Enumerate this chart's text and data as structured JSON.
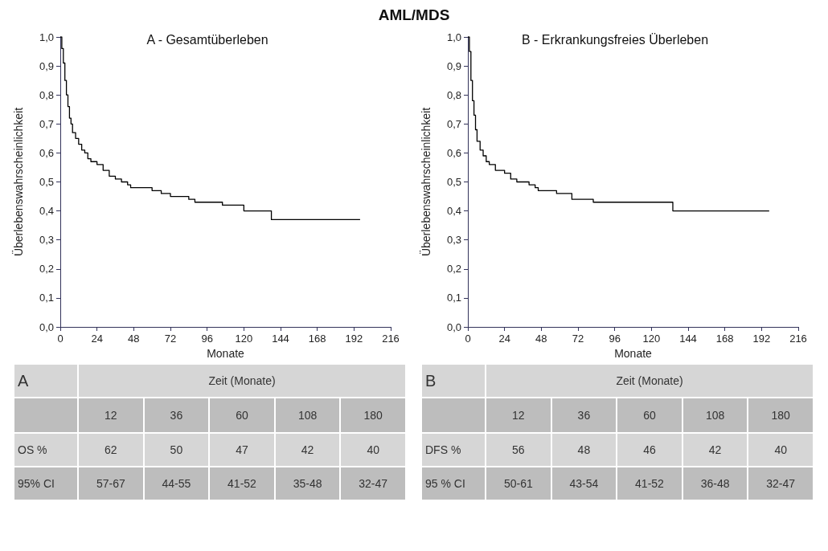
{
  "chart_data": [
    {
      "type": "step",
      "title": "AML/MDS",
      "subtitle": "A - Gesamtüberleben",
      "xlabel": "Monate",
      "ylabel": "Überlebenswahrscheinlichkeit",
      "line_style": "solid",
      "marker": "none",
      "grid": false,
      "xlim": [
        0,
        216
      ],
      "xticks": [
        0,
        24,
        48,
        72,
        96,
        120,
        144,
        168,
        192,
        216
      ],
      "ylim": [
        0,
        1
      ],
      "yticks": [
        {
          "value": 0,
          "label": "0,0"
        },
        {
          "value": 0.1,
          "label": "0,1"
        },
        {
          "value": 0.2,
          "label": "0,2"
        },
        {
          "value": 0.3,
          "label": "0,3"
        },
        {
          "value": 0.4,
          "label": "0,4"
        },
        {
          "value": 0.5,
          "label": "0,5"
        },
        {
          "value": 0.6,
          "label": "0,6"
        },
        {
          "value": 0.7,
          "label": "0,7"
        },
        {
          "value": 0.8,
          "label": "0,8"
        },
        {
          "value": 0.9,
          "label": "0,9"
        },
        {
          "value": 1,
          "label": "1,0"
        }
      ],
      "series": [
        {
          "color": "#000000",
          "x": [
            0,
            1,
            2,
            3,
            4,
            5,
            6,
            7,
            8,
            10,
            12,
            14,
            16,
            18,
            20,
            24,
            28,
            32,
            36,
            40,
            44,
            46,
            60,
            66,
            72,
            84,
            88,
            106,
            120,
            138,
            196
          ],
          "values": [
            1,
            0.96,
            0.91,
            0.85,
            0.8,
            0.76,
            0.72,
            0.7,
            0.67,
            0.65,
            0.63,
            0.61,
            0.6,
            0.58,
            0.57,
            0.56,
            0.54,
            0.52,
            0.51,
            0.5,
            0.49,
            0.48,
            0.47,
            0.46,
            0.45,
            0.44,
            0.43,
            0.42,
            0.4,
            0.37,
            0.37
          ]
        }
      ],
      "annotations": [
        "A",
        "Zeit (Monate)",
        "12",
        "36",
        "60",
        "108",
        "180",
        "OS %",
        "62",
        "50",
        "47",
        "42",
        "40",
        "95% CI",
        "57-67",
        "44-55",
        "41-52",
        "35-48",
        "32-47"
      ]
    },
    {
      "type": "step",
      "title": "B - Erkrankungsfreies Überleben",
      "xlabel": "Monate",
      "ylabel": "Überlebenswahrscheinlichkeit",
      "line_style": "solid",
      "marker": "none",
      "grid": false,
      "xlim": [
        0,
        216
      ],
      "xticks": [
        0,
        24,
        48,
        72,
        96,
        120,
        144,
        168,
        192,
        216
      ],
      "ylim": [
        0,
        1
      ],
      "yticks": [
        {
          "value": 0,
          "label": "0,0"
        },
        {
          "value": 0.1,
          "label": "0,1"
        },
        {
          "value": 0.2,
          "label": "0,2"
        },
        {
          "value": 0.3,
          "label": "0,3"
        },
        {
          "value": 0.4,
          "label": "0,4"
        },
        {
          "value": 0.5,
          "label": "0,5"
        },
        {
          "value": 0.6,
          "label": "0,6"
        },
        {
          "value": 0.7,
          "label": "0,7"
        },
        {
          "value": 0.8,
          "label": "0,8"
        },
        {
          "value": 0.9,
          "label": "0,9"
        },
        {
          "value": 1,
          "label": "1,0"
        }
      ],
      "series": [
        {
          "color": "#000000",
          "x": [
            0,
            1,
            2,
            3,
            4,
            5,
            6,
            8,
            10,
            12,
            14,
            18,
            24,
            28,
            32,
            40,
            44,
            46,
            58,
            68,
            82,
            134,
            197
          ],
          "values": [
            1,
            0.95,
            0.85,
            0.78,
            0.73,
            0.68,
            0.64,
            0.61,
            0.59,
            0.57,
            0.56,
            0.54,
            0.53,
            0.51,
            0.5,
            0.49,
            0.48,
            0.47,
            0.46,
            0.44,
            0.43,
            0.4,
            0.4
          ]
        }
      ],
      "annotations": [
        "B",
        "Zeit (Monate)",
        "12",
        "36",
        "60",
        "108",
        "180",
        "DFS %",
        "56",
        "48",
        "46",
        "42",
        "40",
        "95 % CI",
        "50-61",
        "43-54",
        "41-52",
        "36-48",
        "32-47"
      ]
    }
  ]
}
